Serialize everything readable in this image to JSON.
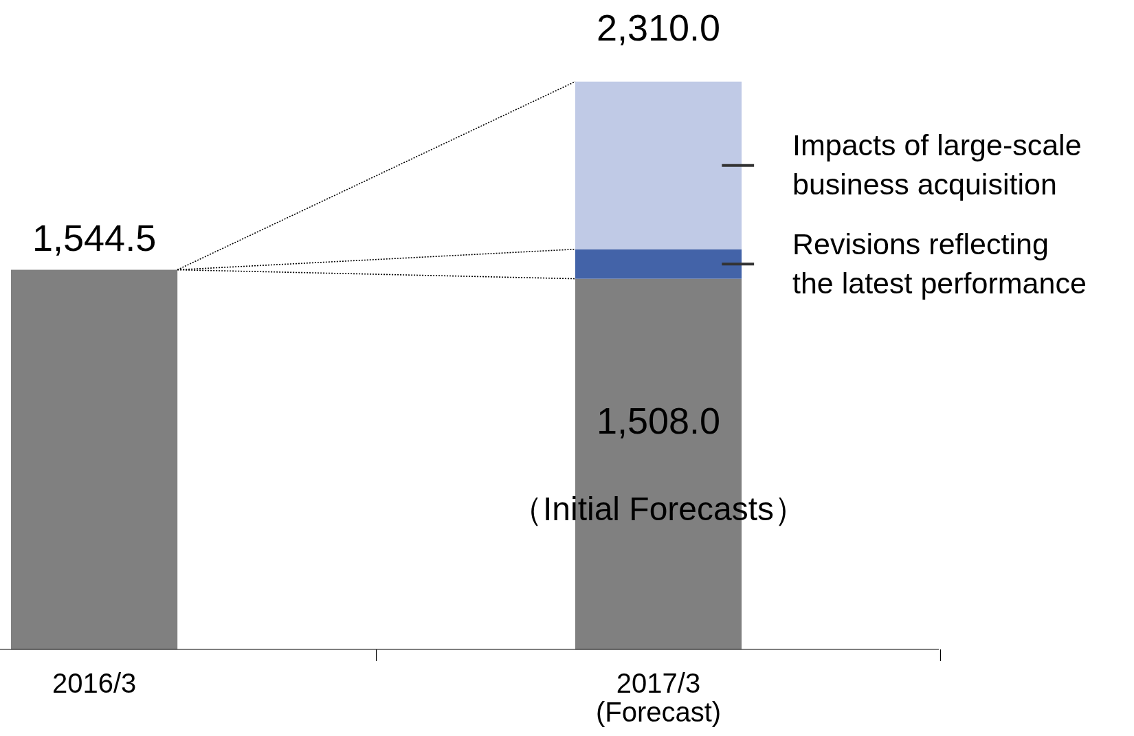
{
  "chart_data": {
    "type": "bar",
    "stacked": true,
    "categories": [
      "2016/3",
      "2017/3\n(Forecast)"
    ],
    "series": [
      {
        "color": "#808080",
        "values": [
          1544.5,
          1508.0
        ],
        "value_labels": [
          "1,544.5",
          "1,508.0"
        ]
      },
      {
        "name": "Revisions reflecting\nthe latest performance",
        "color": "#4363a8",
        "values": [
          null,
          120
        ]
      },
      {
        "name": "Impacts of large-scale\nbusiness acquisition",
        "color": "#c0cae6",
        "values": [
          null,
          682
        ]
      }
    ],
    "totals": [
      null,
      "2,310.0"
    ],
    "annotations": [
      "（Initial Forecasts）"
    ],
    "grid": false
  }
}
